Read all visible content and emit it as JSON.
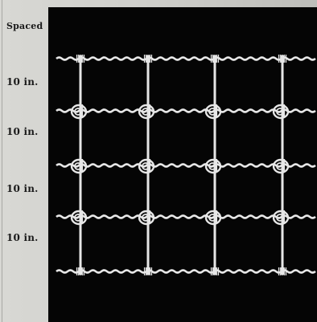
{
  "labels": {
    "header": "Spaced",
    "rows": [
      "10 in.",
      "10 in.",
      "10 in.",
      "10 in."
    ]
  },
  "colors": {
    "panel": "#050505",
    "wire": "#e6e6e6",
    "paper": "#d2d2ce"
  }
}
